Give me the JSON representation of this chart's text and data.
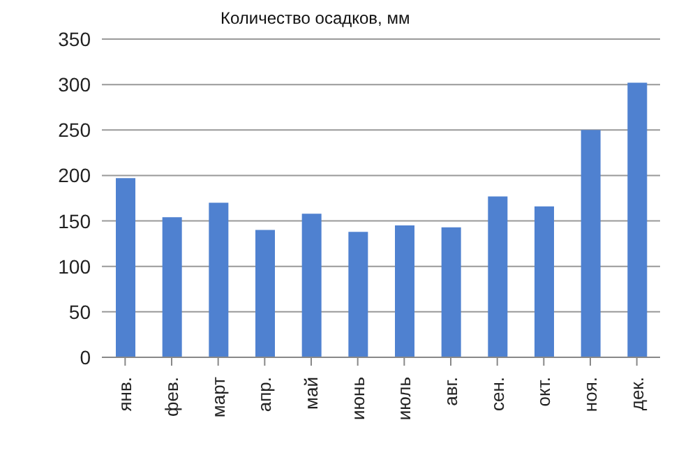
{
  "chart_data": {
    "type": "bar",
    "title": "Количество осадков, мм",
    "categories": [
      "янв.",
      "фев.",
      "март",
      "апр.",
      "май",
      "июнь",
      "июль",
      "авг.",
      "сен.",
      "окт.",
      "ноя.",
      "дек."
    ],
    "values": [
      197,
      154,
      170,
      140,
      158,
      138,
      145,
      143,
      177,
      166,
      250,
      302
    ],
    "color": "#4f81d0",
    "ylim": [
      0,
      350
    ],
    "yticks": [
      0,
      50,
      100,
      150,
      200,
      250,
      300,
      350
    ],
    "grid": "y"
  }
}
